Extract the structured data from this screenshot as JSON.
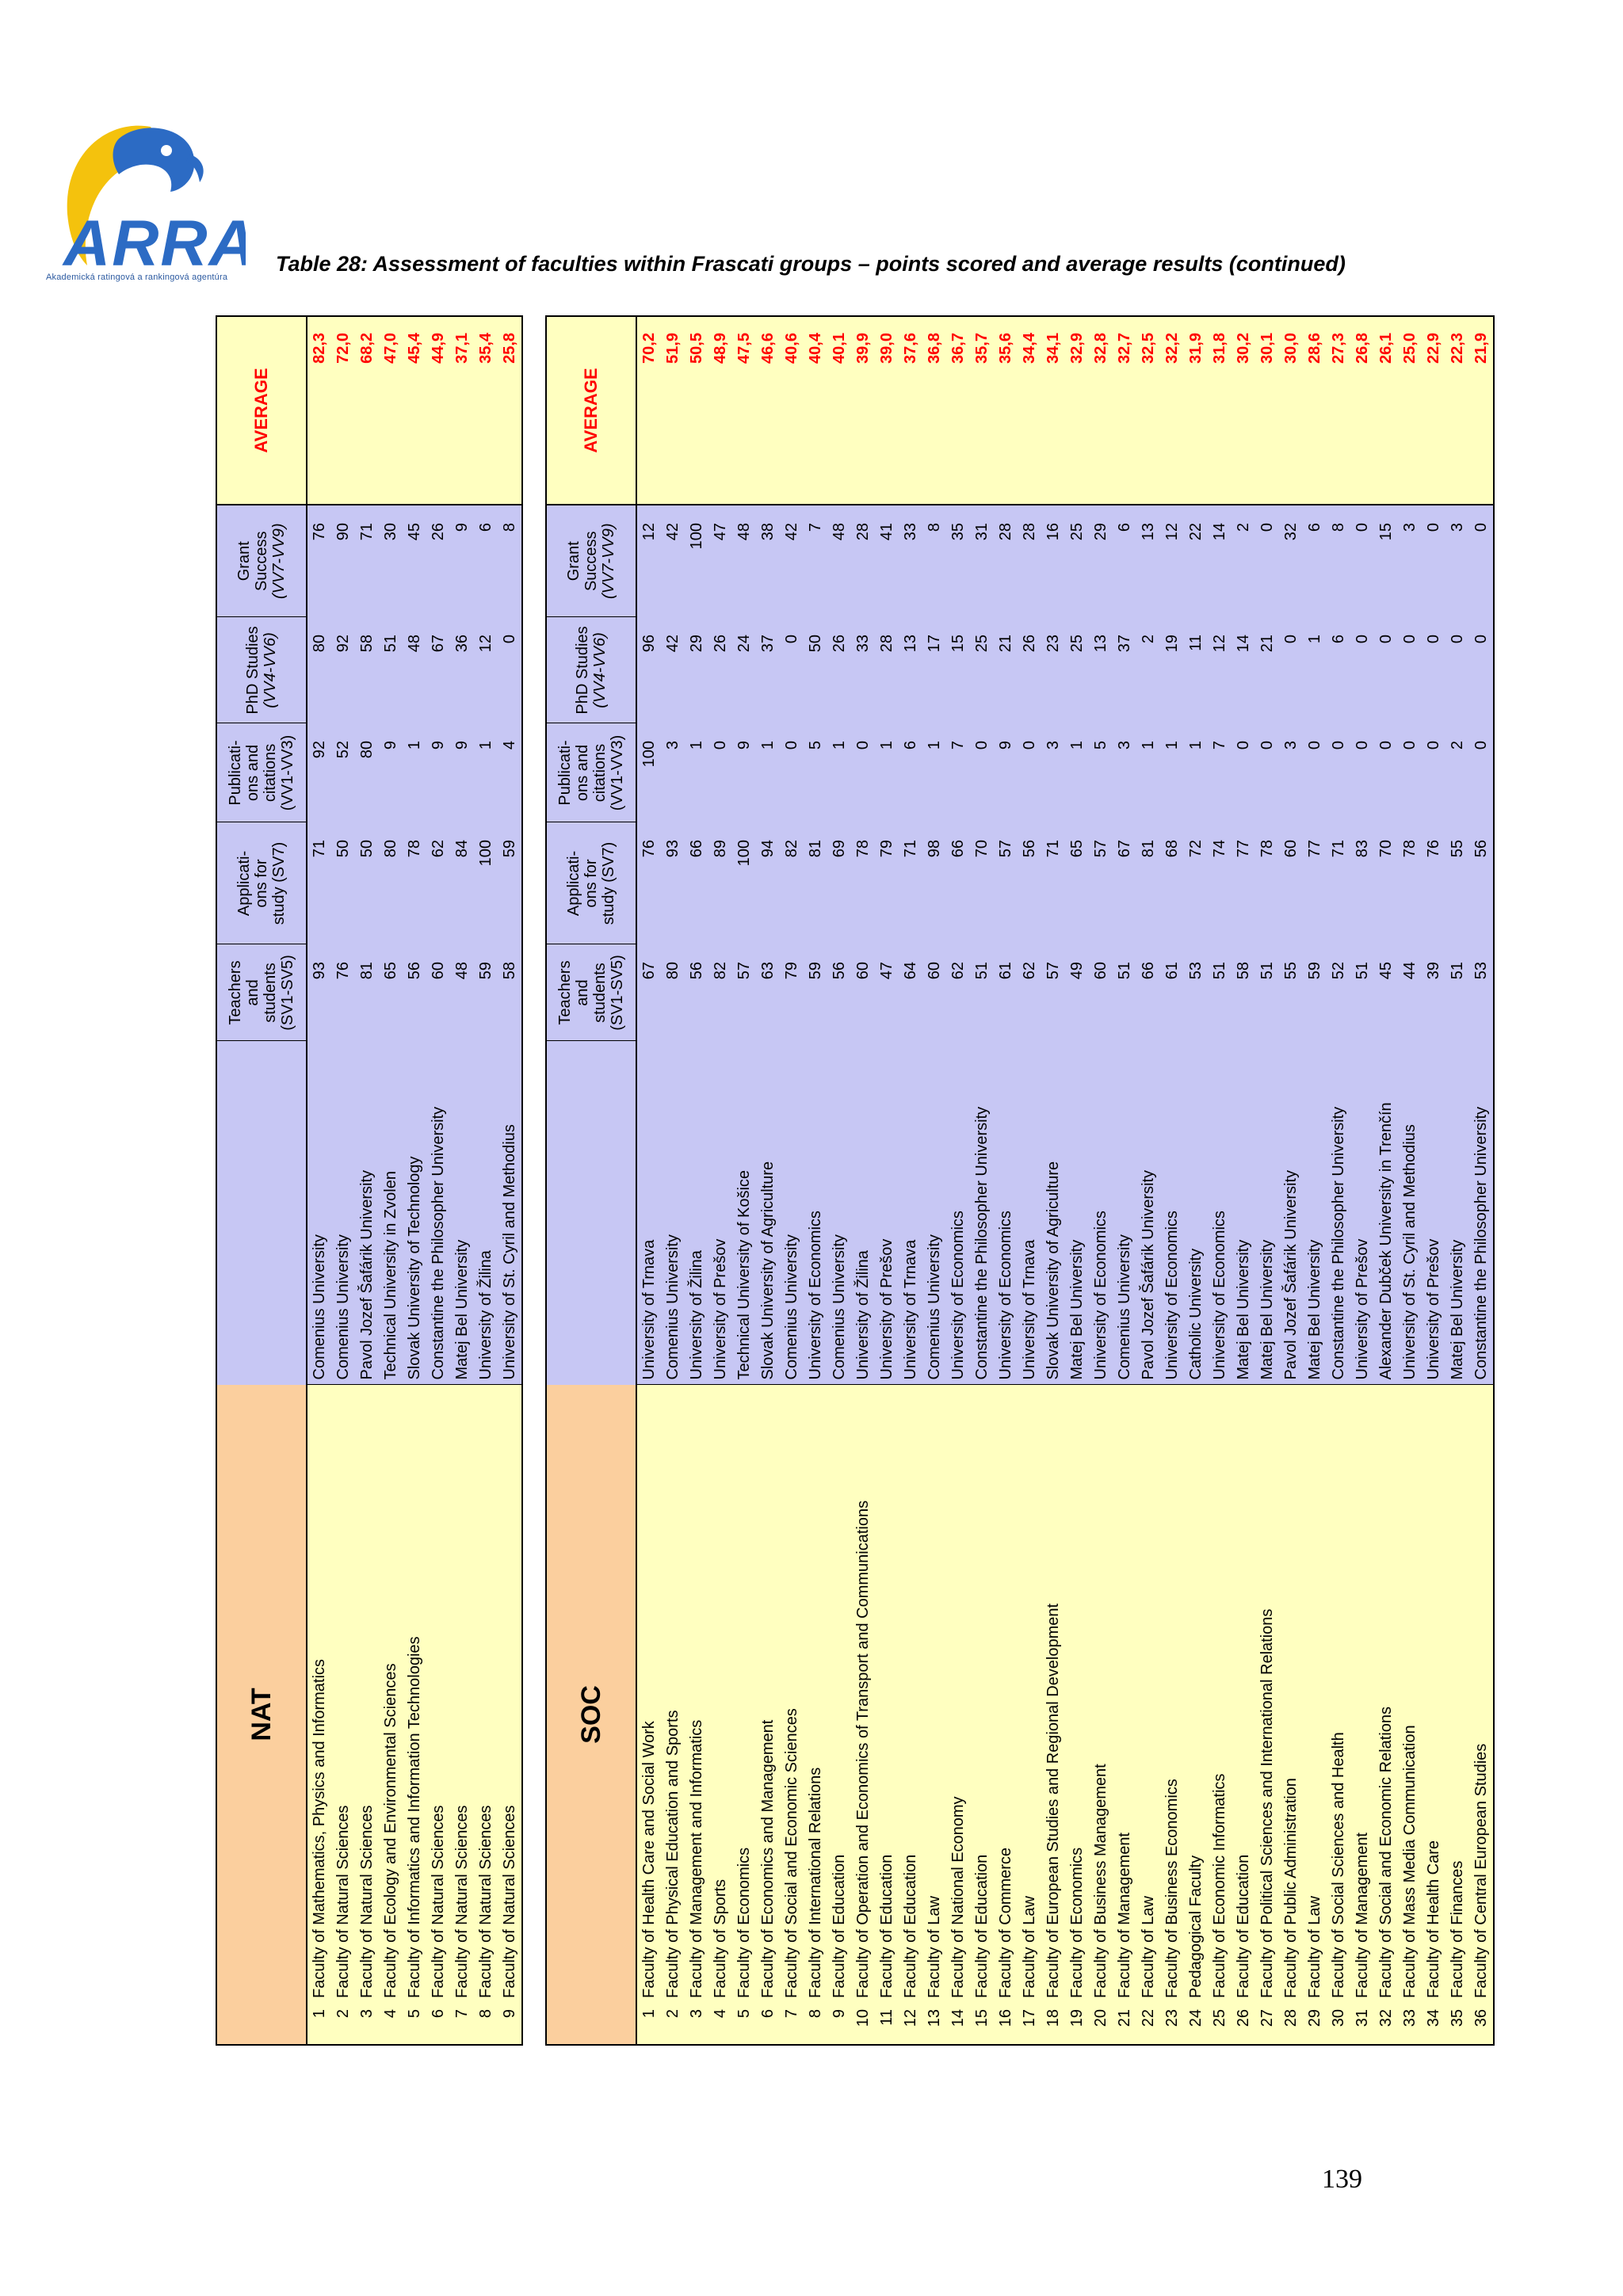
{
  "logo": {
    "text": "ARRA",
    "tagline": "Akademická ratingová a rankingová agentúra"
  },
  "caption": "Table 28: Assessment of faculties within Frascati groups – points scored and average results (continued)",
  "page_number": "139",
  "columns": {
    "teachers": [
      "Teachers",
      "and",
      "students",
      "(SV1-SV5)"
    ],
    "applications": [
      "Applicati-",
      "ons for",
      "study (SV7)"
    ],
    "publications": [
      "Publicati-",
      "ons and",
      "citations",
      "(VV1-VV3)"
    ],
    "phd": [
      "PhD Studies",
      "(VV4-VV6)"
    ],
    "grant": [
      "Grant",
      "Success",
      "(VV7-VV9)"
    ],
    "average": "AVERAGE"
  },
  "nat": {
    "group": "NAT",
    "rows": [
      {
        "n": "1",
        "faculty": "Faculty of Mathematics, Physics and Informatics",
        "university": "Comenius University",
        "t": "93",
        "a": "71",
        "p": "92",
        "d": "80",
        "g": "76",
        "avg": "82,3"
      },
      {
        "n": "2",
        "faculty": "Faculty of Natural Sciences",
        "university": "Comenius University",
        "t": "76",
        "a": "50",
        "p": "52",
        "d": "92",
        "g": "90",
        "avg": "72,0"
      },
      {
        "n": "3",
        "faculty": "Faculty of Natural Sciences",
        "university": "Pavol Jozef Šafárik University",
        "t": "81",
        "a": "50",
        "p": "80",
        "d": "58",
        "g": "71",
        "avg": "68,2"
      },
      {
        "n": "4",
        "faculty": "Faculty of Ecology and Environmental Sciences",
        "university": "Technical University in Zvolen",
        "t": "65",
        "a": "80",
        "p": "9",
        "d": "51",
        "g": "30",
        "avg": "47,0"
      },
      {
        "n": "5",
        "faculty": "Faculty of Informatics and Information Technologies",
        "university": "Slovak University of Technology",
        "t": "56",
        "a": "78",
        "p": "1",
        "d": "48",
        "g": "45",
        "avg": "45,4"
      },
      {
        "n": "6",
        "faculty": "Faculty of Natural Sciences",
        "university": "Constantine the Philosopher University",
        "t": "60",
        "a": "62",
        "p": "9",
        "d": "67",
        "g": "26",
        "avg": "44,9"
      },
      {
        "n": "7",
        "faculty": "Faculty of Natural Sciences",
        "university": "Matej Bel University",
        "t": "48",
        "a": "84",
        "p": "9",
        "d": "36",
        "g": "9",
        "avg": "37,1"
      },
      {
        "n": "8",
        "faculty": "Faculty of Natural Sciences",
        "university": "University of Žilina",
        "t": "59",
        "a": "100",
        "p": "1",
        "d": "12",
        "g": "6",
        "avg": "35,4"
      },
      {
        "n": "9",
        "faculty": "Faculty of Natural Sciences",
        "university": "University of St. Cyril and Methodius",
        "t": "58",
        "a": "59",
        "p": "4",
        "d": "0",
        "g": "8",
        "avg": "25,8"
      }
    ]
  },
  "soc": {
    "group": "SOC",
    "rows": [
      {
        "n": "1",
        "faculty": "Faculty of Health Care and Social Work",
        "university": "University of Trnava",
        "t": "67",
        "a": "76",
        "p": "100",
        "d": "96",
        "g": "12",
        "avg": "70,2"
      },
      {
        "n": "2",
        "faculty": "Faculty of Physical Education and Sports",
        "university": "Comenius University",
        "t": "80",
        "a": "93",
        "p": "3",
        "d": "42",
        "g": "42",
        "avg": "51,9"
      },
      {
        "n": "3",
        "faculty": "Faculty of Management and Informatics",
        "university": "University of Žilina",
        "t": "56",
        "a": "66",
        "p": "1",
        "d": "29",
        "g": "100",
        "avg": "50,5"
      },
      {
        "n": "4",
        "faculty": "Faculty of Sports",
        "university": "University of Prešov",
        "t": "82",
        "a": "89",
        "p": "0",
        "d": "26",
        "g": "47",
        "avg": "48,9"
      },
      {
        "n": "5",
        "faculty": "Faculty of Economics",
        "university": "Technical University of Košice",
        "t": "57",
        "a": "100",
        "p": "9",
        "d": "24",
        "g": "48",
        "avg": "47,5"
      },
      {
        "n": "6",
        "faculty": "Faculty of Economics and Management",
        "university": "Slovak University of Agriculture",
        "t": "63",
        "a": "94",
        "p": "1",
        "d": "37",
        "g": "38",
        "avg": "46,6"
      },
      {
        "n": "7",
        "faculty": "Faculty of Social and Economic Sciences",
        "university": "Comenius University",
        "t": "79",
        "a": "82",
        "p": "0",
        "d": "0",
        "g": "42",
        "avg": "40,6"
      },
      {
        "n": "8",
        "faculty": "Faculty of International Relations",
        "university": "University of Economics",
        "t": "59",
        "a": "81",
        "p": "5",
        "d": "50",
        "g": "7",
        "avg": "40,4"
      },
      {
        "n": "9",
        "faculty": "Faculty of Education",
        "university": "Comenius University",
        "t": "56",
        "a": "69",
        "p": "1",
        "d": "26",
        "g": "48",
        "avg": "40,1"
      },
      {
        "n": "10",
        "faculty": "Faculty of Operation and Economics of Transport and Communications",
        "university": "University of Žilina",
        "t": "60",
        "a": "78",
        "p": "0",
        "d": "33",
        "g": "28",
        "avg": "39,9"
      },
      {
        "n": "11",
        "faculty": "Faculty of Education",
        "university": "University of Prešov",
        "t": "47",
        "a": "79",
        "p": "1",
        "d": "28",
        "g": "41",
        "avg": "39,0"
      },
      {
        "n": "12",
        "faculty": "Faculty of Education",
        "university": "University of Trnava",
        "t": "64",
        "a": "71",
        "p": "6",
        "d": "13",
        "g": "33",
        "avg": "37,6"
      },
      {
        "n": "13",
        "faculty": "Faculty of Law",
        "university": "Comenius University",
        "t": "60",
        "a": "98",
        "p": "1",
        "d": "17",
        "g": "8",
        "avg": "36,8"
      },
      {
        "n": "14",
        "faculty": "Faculty of National Economy",
        "university": "University of Economics",
        "t": "62",
        "a": "66",
        "p": "7",
        "d": "15",
        "g": "35",
        "avg": "36,7"
      },
      {
        "n": "15",
        "faculty": "Faculty of Education",
        "university": "Constantine the Philosopher University",
        "t": "51",
        "a": "70",
        "p": "0",
        "d": "25",
        "g": "31",
        "avg": "35,7"
      },
      {
        "n": "16",
        "faculty": "Faculty of Commerce",
        "university": "University of Economics",
        "t": "61",
        "a": "57",
        "p": "9",
        "d": "21",
        "g": "28",
        "avg": "35,6"
      },
      {
        "n": "17",
        "faculty": "Faculty of Law",
        "university": "University of Trnava",
        "t": "62",
        "a": "56",
        "p": "0",
        "d": "26",
        "g": "28",
        "avg": "34,4"
      },
      {
        "n": "18",
        "faculty": "Faculty of European Studies and Regional Development",
        "university": "Slovak University of Agriculture",
        "t": "57",
        "a": "71",
        "p": "3",
        "d": "23",
        "g": "16",
        "avg": "34,1"
      },
      {
        "n": "19",
        "faculty": "Faculty of Economics",
        "university": "Matej Bel University",
        "t": "49",
        "a": "65",
        "p": "1",
        "d": "25",
        "g": "25",
        "avg": "32,9"
      },
      {
        "n": "20",
        "faculty": "Faculty of Business Management",
        "university": "University of Economics",
        "t": "60",
        "a": "57",
        "p": "5",
        "d": "13",
        "g": "29",
        "avg": "32,8"
      },
      {
        "n": "21",
        "faculty": "Faculty of Management",
        "university": "Comenius University",
        "t": "51",
        "a": "67",
        "p": "3",
        "d": "37",
        "g": "6",
        "avg": "32,7"
      },
      {
        "n": "22",
        "faculty": "Faculty of Law",
        "university": "Pavol Jozef Šafárik University",
        "t": "66",
        "a": "81",
        "p": "1",
        "d": "2",
        "g": "13",
        "avg": "32,5"
      },
      {
        "n": "23",
        "faculty": "Faculty of Business Economics",
        "university": "University of Economics",
        "t": "61",
        "a": "68",
        "p": "1",
        "d": "19",
        "g": "12",
        "avg": "32,2"
      },
      {
        "n": "24",
        "faculty": "Pedagogical Faculty",
        "university": "Catholic University",
        "t": "53",
        "a": "72",
        "p": "1",
        "d": "11",
        "g": "22",
        "avg": "31,9"
      },
      {
        "n": "25",
        "faculty": "Faculty of Economic Informatics",
        "university": "University of Economics",
        "t": "51",
        "a": "74",
        "p": "7",
        "d": "12",
        "g": "14",
        "avg": "31,8"
      },
      {
        "n": "26",
        "faculty": "Faculty of Education",
        "university": "Matej Bel University",
        "t": "58",
        "a": "77",
        "p": "0",
        "d": "14",
        "g": "2",
        "avg": "30,2"
      },
      {
        "n": "27",
        "faculty": "Faculty of Political Sciences and International Relations",
        "university": "Matej Bel University",
        "t": "51",
        "a": "78",
        "p": "0",
        "d": "21",
        "g": "0",
        "avg": "30,1"
      },
      {
        "n": "28",
        "faculty": "Faculty of Public Administration",
        "university": "Pavol Jozef Šafárik University",
        "t": "55",
        "a": "60",
        "p": "3",
        "d": "0",
        "g": "32",
        "avg": "30,0"
      },
      {
        "n": "29",
        "faculty": "Faculty of Law",
        "university": "Matej Bel University",
        "t": "59",
        "a": "77",
        "p": "0",
        "d": "1",
        "g": "6",
        "avg": "28,6"
      },
      {
        "n": "30",
        "faculty": "Faculty of Social Sciences and Health",
        "university": "Constantine the Philosopher University",
        "t": "52",
        "a": "71",
        "p": "0",
        "d": "6",
        "g": "8",
        "avg": "27,3"
      },
      {
        "n": "31",
        "faculty": "Faculty of Management",
        "university": "University of Prešov",
        "t": "51",
        "a": "83",
        "p": "0",
        "d": "0",
        "g": "0",
        "avg": "26,8"
      },
      {
        "n": "32",
        "faculty": "Faculty of Social and Economic Relations",
        "university": "Alexander Dubček University in Trenčín",
        "t": "45",
        "a": "70",
        "p": "0",
        "d": "0",
        "g": "15",
        "avg": "26,1"
      },
      {
        "n": "33",
        "faculty": "Faculty of Mass Media Communication",
        "university": "University of St. Cyril and Methodius",
        "t": "44",
        "a": "78",
        "p": "0",
        "d": "0",
        "g": "3",
        "avg": "25,0"
      },
      {
        "n": "34",
        "faculty": "Faculty of Health Care",
        "university": "University of Prešov",
        "t": "39",
        "a": "76",
        "p": "0",
        "d": "0",
        "g": "0",
        "avg": "22,9"
      },
      {
        "n": "35",
        "faculty": "Faculty of Finances",
        "university": "Matej Bel University",
        "t": "51",
        "a": "55",
        "p": "2",
        "d": "0",
        "g": "3",
        "avg": "22,3"
      },
      {
        "n": "36",
        "faculty": "Faculty of Central European Studies",
        "university": "Constantine the Philosopher University",
        "t": "53",
        "a": "56",
        "p": "0",
        "d": "0",
        "g": "0",
        "avg": "21,9"
      }
    ]
  }
}
